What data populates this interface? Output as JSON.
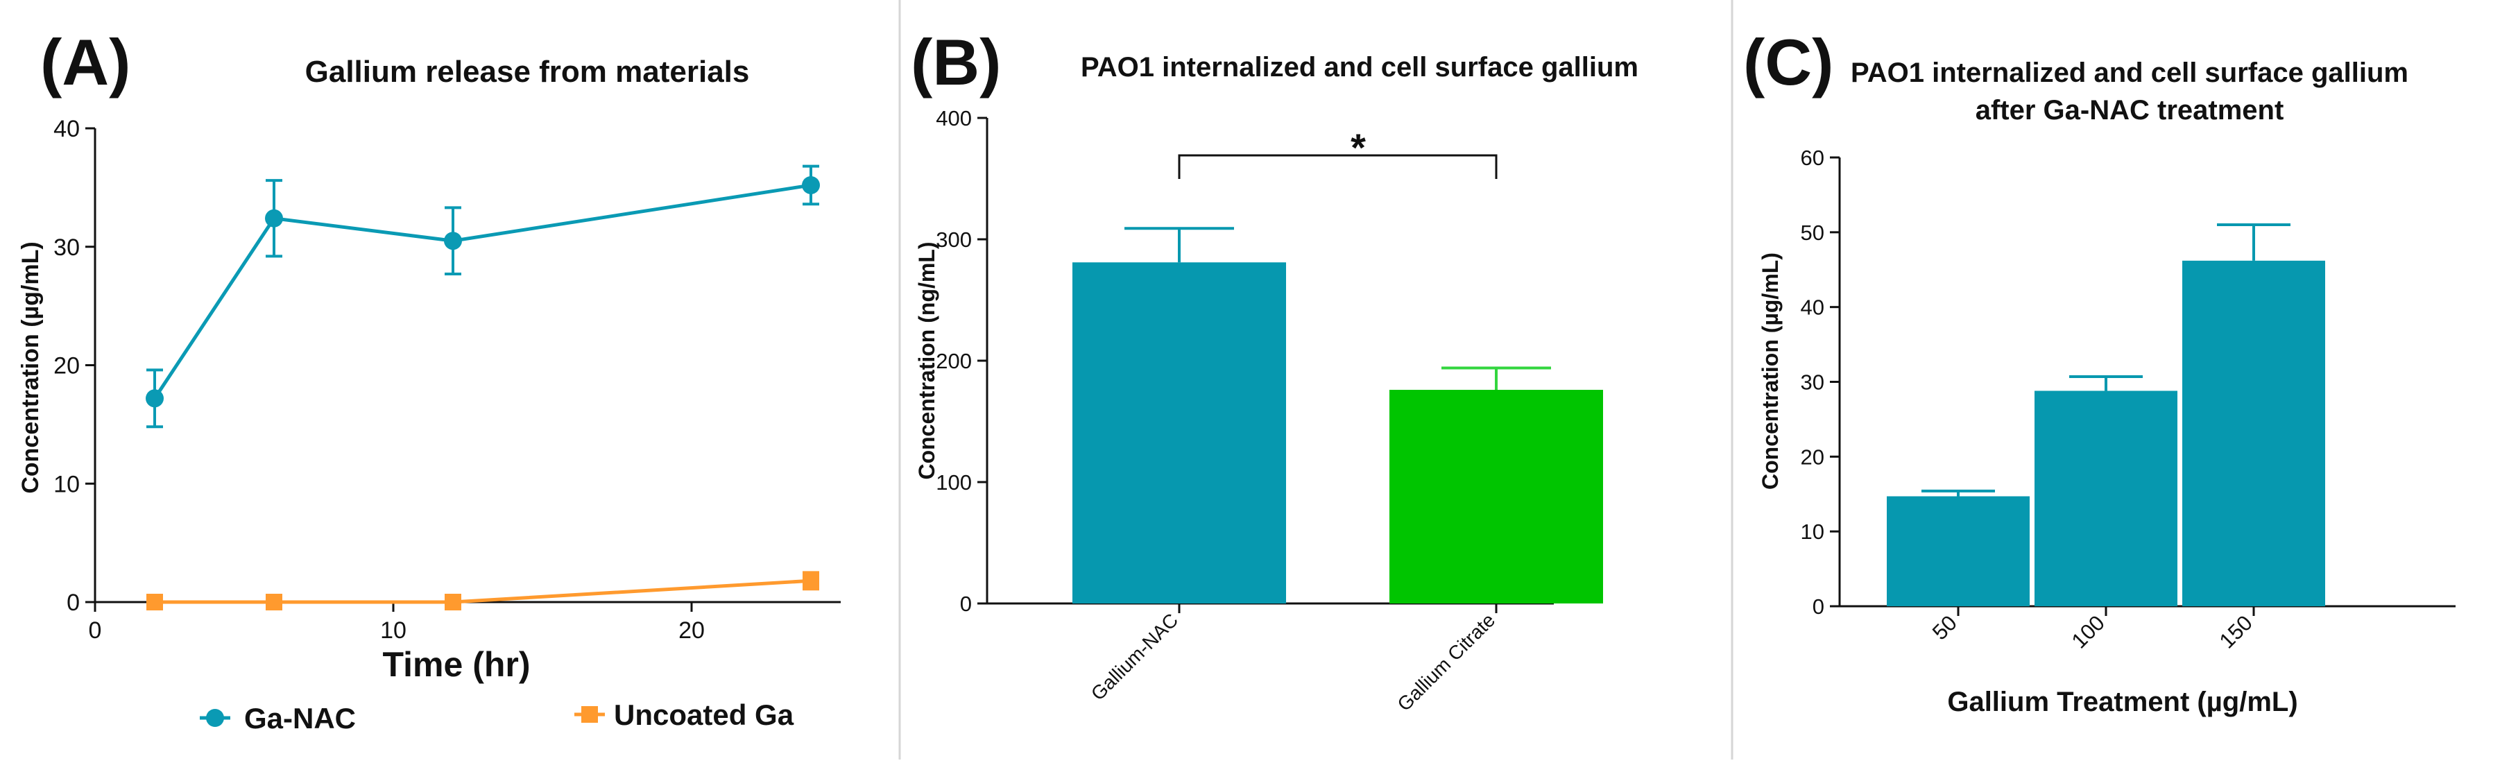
{
  "colors": {
    "teal": "#0A9AB4",
    "green": "#00C000",
    "orange": "#FF9A2E",
    "bar_teal": "#0698AF",
    "bar_green": "#00C500",
    "err_green": "#33D63F",
    "axis": "#111111",
    "divider": "#D6D6D6"
  },
  "panels": [
    {
      "letter": "(A)"
    },
    {
      "letter": "(B)"
    },
    {
      "letter": "(C)"
    }
  ],
  "chart_data": [
    {
      "panel": "(A)",
      "type": "line",
      "title": "Gallium release from materials",
      "xlabel": "Time (hr)",
      "ylabel": "Concentration (µg/mL)",
      "xlim": [
        0,
        25
      ],
      "ylim": [
        0,
        40
      ],
      "xticks": [
        0,
        10,
        20
      ],
      "yticks": [
        0,
        10,
        20,
        30,
        40
      ],
      "series": [
        {
          "name": "Ga-NAC",
          "marker": "circle",
          "x": [
            2,
            6,
            12,
            24
          ],
          "y": [
            17.2,
            32.4,
            30.5,
            35.2
          ],
          "err": [
            2.4,
            3.2,
            2.8,
            1.6
          ]
        },
        {
          "name": "Uncoated Ga",
          "marker": "square",
          "x": [
            2,
            6,
            12,
            24
          ],
          "y": [
            0,
            0,
            0,
            1.8
          ],
          "err": [
            0,
            0,
            0,
            0.7
          ]
        }
      ],
      "legend": [
        "Ga-NAC",
        "Uncoated Ga"
      ],
      "legend_position": "bottom"
    },
    {
      "panel": "(B)",
      "type": "bar",
      "title": "PAO1 internalized and cell surface gallium",
      "xlabel": "",
      "ylabel": "Concentration (ng/mL)",
      "ylim": [
        0,
        400
      ],
      "yticks": [
        0,
        100,
        200,
        300,
        400
      ],
      "categories": [
        "Gallium-NAC",
        "Gallium Citrate"
      ],
      "values": [
        281,
        176
      ],
      "errors": [
        28,
        18
      ],
      "significance": "*"
    },
    {
      "panel": "(C)",
      "type": "bar",
      "title": "PAO1 internalized and cell surface gallium",
      "title_line2": "after Ga-NAC treatment",
      "xlabel": "Gallium Treatment (µg/mL)",
      "ylabel": "Concentration (µg/mL)",
      "ylim": [
        0,
        60
      ],
      "yticks": [
        0,
        10,
        20,
        30,
        40,
        50,
        60
      ],
      "categories": [
        "50",
        "100",
        "150"
      ],
      "values": [
        14.7,
        28.8,
        46.2
      ],
      "errors": [
        0.7,
        1.9,
        4.8
      ]
    }
  ]
}
